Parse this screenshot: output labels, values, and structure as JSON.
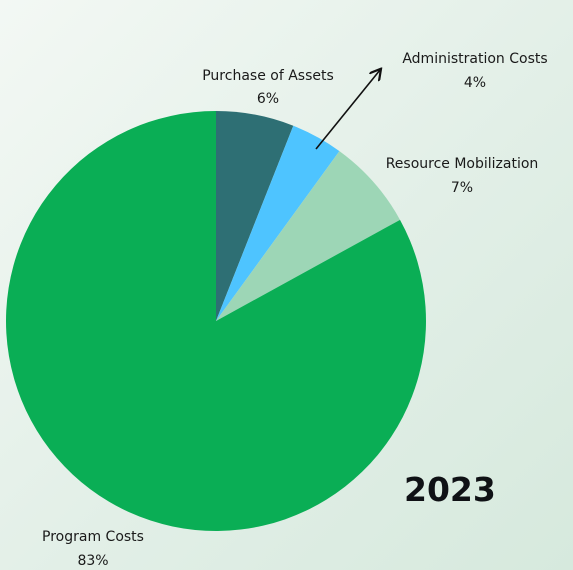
{
  "chart_data": {
    "type": "pie",
    "title": "2023",
    "slices": [
      {
        "label": "Purchase of Assets",
        "value": 6,
        "value_label": "6%",
        "color": "#2e6f74"
      },
      {
        "label": "Administration Costs",
        "value": 4,
        "value_label": "4%",
        "color": "#4ec4ff"
      },
      {
        "label": "Resource Mobilization",
        "value": 7,
        "value_label": "7%",
        "color": "#9dd6b6"
      },
      {
        "label": "Program Costs",
        "value": 83,
        "value_label": "83%",
        "color": "#0aae55"
      }
    ],
    "start_angle": "12 o'clock",
    "direction": "clockwise",
    "legend": "none"
  }
}
